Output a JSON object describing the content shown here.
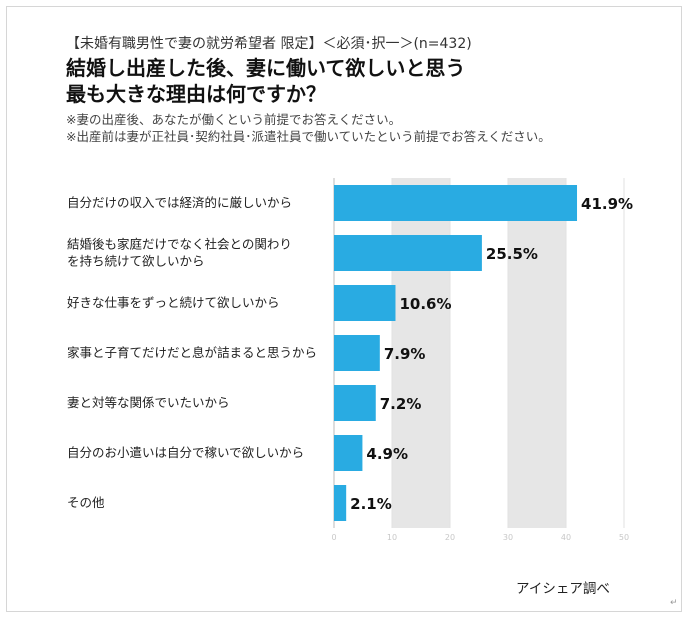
{
  "header": {
    "subtitle": "【未婚有職男性で妻の就労希望者 限定】＜必須･択一＞(n=432)",
    "title_line1": "結婚し出産した後、妻に働いて欲しいと思う",
    "title_line2": "最も大きな理由は何ですか？",
    "note1": "※妻の出産後、あなたが働くという前提でお答えください。",
    "note2": "※出産前は妻が正社員･契約社員･派遣社員で働いていたという前提でお答えください。"
  },
  "chart_data": {
    "type": "bar",
    "orientation": "horizontal",
    "categories": [
      [
        "自分だけの収入では経済的に厳しいから"
      ],
      [
        "結婚後も家庭だけでなく社会との関わり",
        "を持ち続けて欲しいから"
      ],
      [
        "好きな仕事をずっと続けて欲しいから"
      ],
      [
        "家事と子育てだけだと息が詰まると思うから"
      ],
      [
        "妻と対等な関係でいたいから"
      ],
      [
        "自分のお小遣いは自分で稼いで欲しいから"
      ],
      [
        "その他"
      ]
    ],
    "values": [
      41.9,
      25.5,
      10.6,
      7.9,
      7.2,
      4.9,
      2.1
    ],
    "value_labels": [
      "41.9%",
      "25.5%",
      "10.6%",
      "7.9%",
      "7.2%",
      "4.9%",
      "2.1%"
    ],
    "xlim": [
      0,
      50
    ],
    "xticks": [
      "0",
      "10",
      "20",
      "30",
      "40",
      "50"
    ],
    "bar_color": "#29abe2",
    "band_color": "#e6e6e6",
    "grid": true
  },
  "footer": {
    "source": "アイシェア調べ",
    "mark": "↵"
  }
}
